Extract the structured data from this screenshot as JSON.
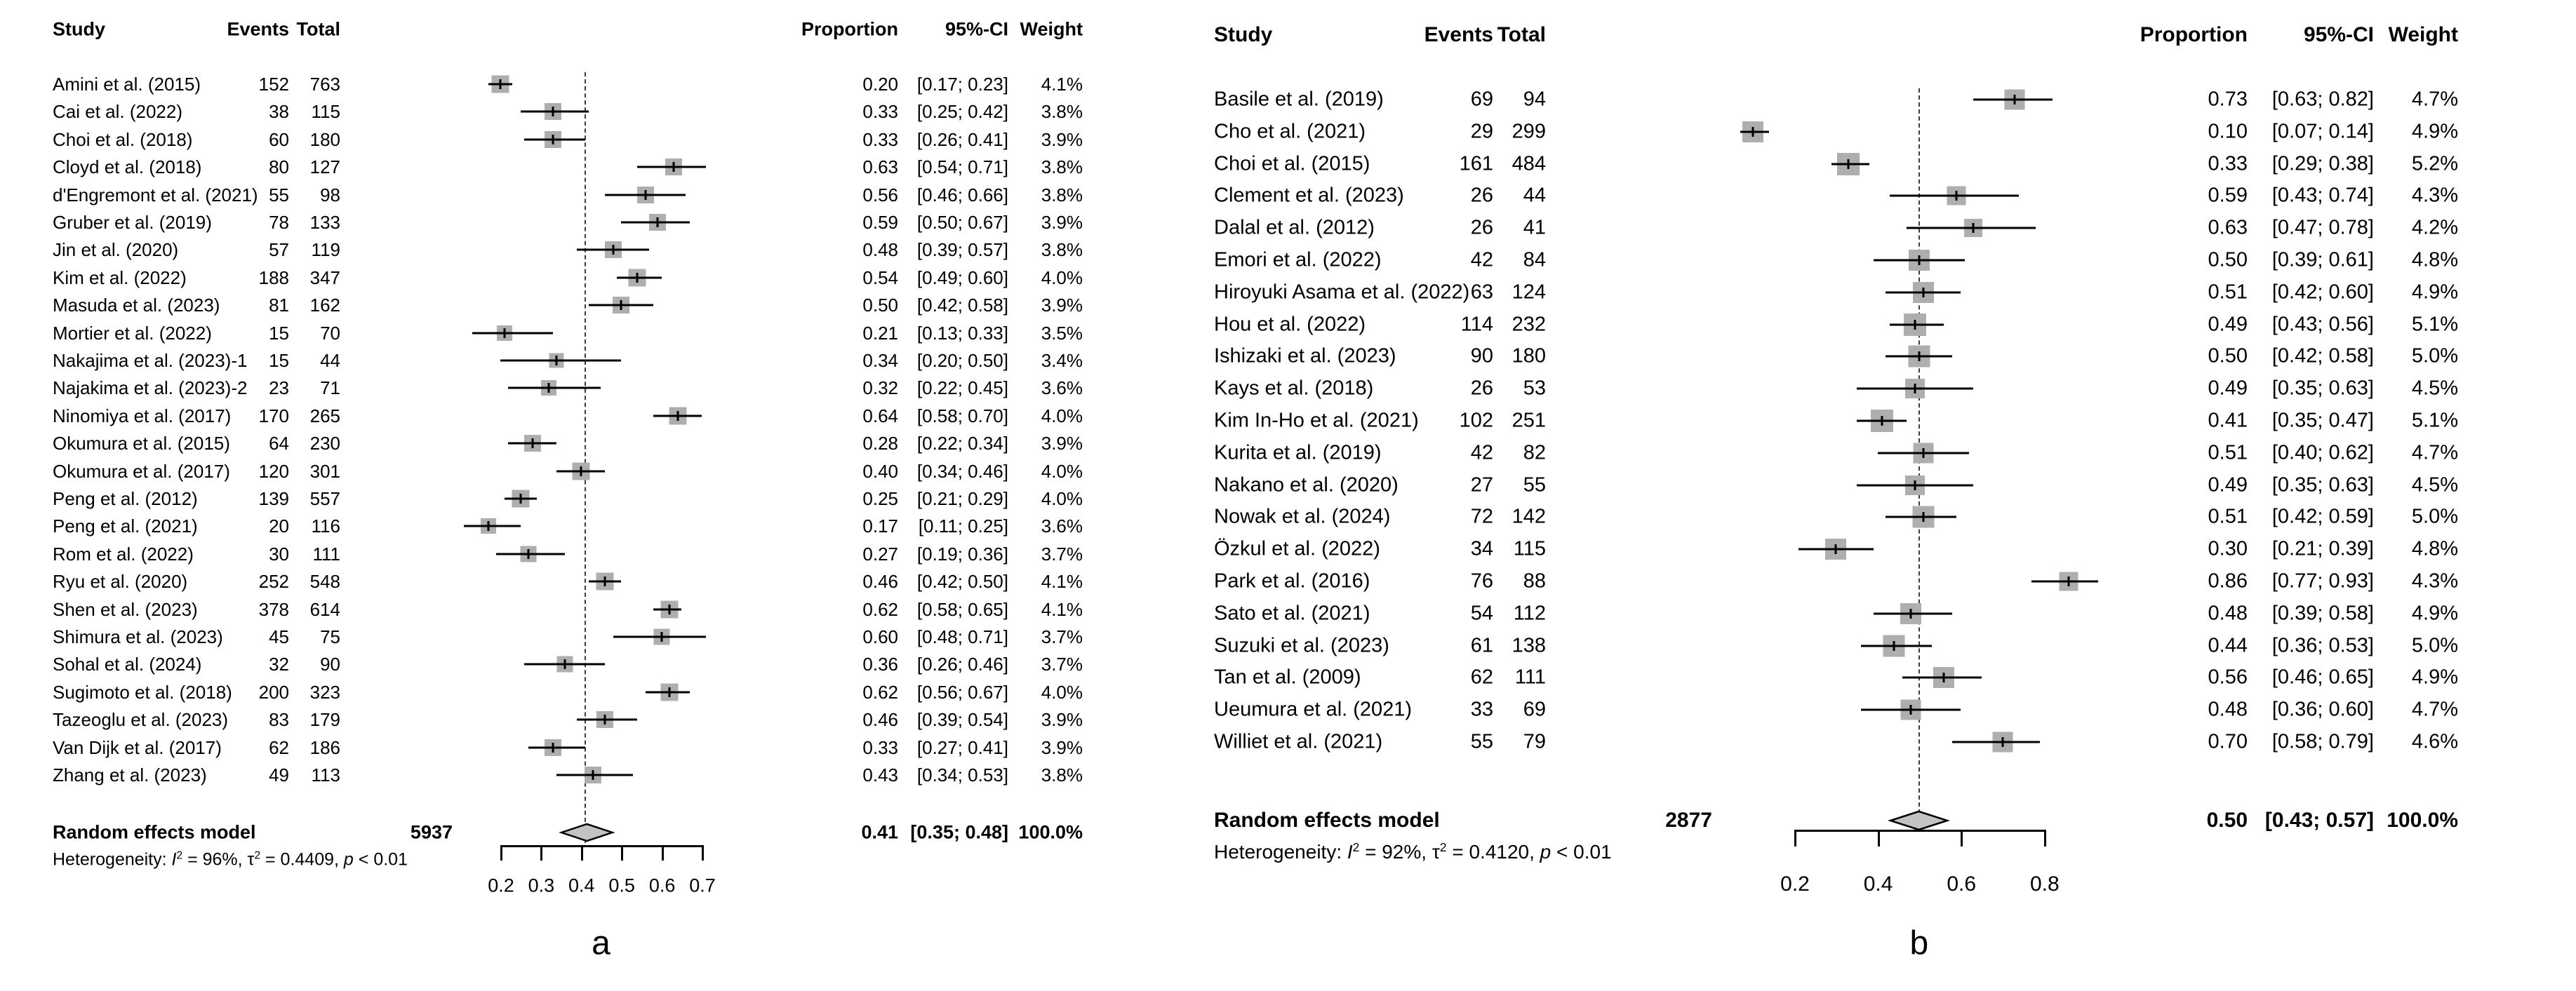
{
  "chart_data": [
    {
      "type": "forest",
      "panel_label": "a",
      "columns": {
        "study": "Study",
        "events": "Events",
        "total": "Total",
        "proportion": "Proportion",
        "ci": "95%-CI",
        "weight": "Weight"
      },
      "axis": {
        "min": 0.2,
        "max": 0.7,
        "ticks": [
          0.2,
          0.3,
          0.4,
          0.5,
          0.6,
          0.7
        ],
        "tick_labels": [
          "0.2",
          "0.3",
          "0.4",
          "0.5",
          "0.6",
          "0.7"
        ]
      },
      "ref_line": 0.41,
      "studies": [
        {
          "study": "Amini et al. (2015)",
          "events": "152",
          "total": "763",
          "proportion": "0.20",
          "ci": "[0.17; 0.23]",
          "weight": "4.1%",
          "prop": 0.2,
          "lo": 0.17,
          "hi": 0.23,
          "w": 4.1
        },
        {
          "study": "Cai et al. (2022)",
          "events": "38",
          "total": "115",
          "proportion": "0.33",
          "ci": "[0.25; 0.42]",
          "weight": "3.8%",
          "prop": 0.33,
          "lo": 0.25,
          "hi": 0.42,
          "w": 3.8
        },
        {
          "study": "Choi et al. (2018)",
          "events": "60",
          "total": "180",
          "proportion": "0.33",
          "ci": "[0.26; 0.41]",
          "weight": "3.9%",
          "prop": 0.33,
          "lo": 0.26,
          "hi": 0.41,
          "w": 3.9
        },
        {
          "study": "Cloyd et al. (2018)",
          "events": "80",
          "total": "127",
          "proportion": "0.63",
          "ci": "[0.54; 0.71]",
          "weight": "3.8%",
          "prop": 0.63,
          "lo": 0.54,
          "hi": 0.71,
          "w": 3.8
        },
        {
          "study": "d'Engremont et al. (2021)",
          "events": "55",
          "total": "98",
          "proportion": "0.56",
          "ci": "[0.46; 0.66]",
          "weight": "3.8%",
          "prop": 0.56,
          "lo": 0.46,
          "hi": 0.66,
          "w": 3.8
        },
        {
          "study": "Gruber et al. (2019)",
          "events": "78",
          "total": "133",
          "proportion": "0.59",
          "ci": "[0.50; 0.67]",
          "weight": "3.9%",
          "prop": 0.59,
          "lo": 0.5,
          "hi": 0.67,
          "w": 3.9
        },
        {
          "study": "Jin et al. (2020)",
          "events": "57",
          "total": "119",
          "proportion": "0.48",
          "ci": "[0.39; 0.57]",
          "weight": "3.8%",
          "prop": 0.48,
          "lo": 0.39,
          "hi": 0.57,
          "w": 3.8
        },
        {
          "study": "Kim et al. (2022)",
          "events": "188",
          "total": "347",
          "proportion": "0.54",
          "ci": "[0.49; 0.60]",
          "weight": "4.0%",
          "prop": 0.54,
          "lo": 0.49,
          "hi": 0.6,
          "w": 4.0
        },
        {
          "study": "Masuda et al. (2023)",
          "events": "81",
          "total": "162",
          "proportion": "0.50",
          "ci": "[0.42; 0.58]",
          "weight": "3.9%",
          "prop": 0.5,
          "lo": 0.42,
          "hi": 0.58,
          "w": 3.9
        },
        {
          "study": "Mortier et al. (2022)",
          "events": "15",
          "total": "70",
          "proportion": "0.21",
          "ci": "[0.13; 0.33]",
          "weight": "3.5%",
          "prop": 0.21,
          "lo": 0.13,
          "hi": 0.33,
          "w": 3.5
        },
        {
          "study": "Nakajima et al. (2023)-1",
          "events": "15",
          "total": "44",
          "proportion": "0.34",
          "ci": "[0.20; 0.50]",
          "weight": "3.4%",
          "prop": 0.34,
          "lo": 0.2,
          "hi": 0.5,
          "w": 3.4
        },
        {
          "study": "Najakima et al. (2023)-2",
          "events": "23",
          "total": "71",
          "proportion": "0.32",
          "ci": "[0.22; 0.45]",
          "weight": "3.6%",
          "prop": 0.32,
          "lo": 0.22,
          "hi": 0.45,
          "w": 3.6
        },
        {
          "study": "Ninomiya et al. (2017)",
          "events": "170",
          "total": "265",
          "proportion": "0.64",
          "ci": "[0.58; 0.70]",
          "weight": "4.0%",
          "prop": 0.64,
          "lo": 0.58,
          "hi": 0.7,
          "w": 4.0
        },
        {
          "study": "Okumura et al. (2015)",
          "events": "64",
          "total": "230",
          "proportion": "0.28",
          "ci": "[0.22; 0.34]",
          "weight": "3.9%",
          "prop": 0.28,
          "lo": 0.22,
          "hi": 0.34,
          "w": 3.9
        },
        {
          "study": "Okumura et al. (2017)",
          "events": "120",
          "total": "301",
          "proportion": "0.40",
          "ci": "[0.34; 0.46]",
          "weight": "4.0%",
          "prop": 0.4,
          "lo": 0.34,
          "hi": 0.46,
          "w": 4.0
        },
        {
          "study": "Peng et al. (2012)",
          "events": "139",
          "total": "557",
          "proportion": "0.25",
          "ci": "[0.21; 0.29]",
          "weight": "4.0%",
          "prop": 0.25,
          "lo": 0.21,
          "hi": 0.29,
          "w": 4.0
        },
        {
          "study": "Peng et al. (2021)",
          "events": "20",
          "total": "116",
          "proportion": "0.17",
          "ci": "[0.11; 0.25]",
          "weight": "3.6%",
          "prop": 0.17,
          "lo": 0.11,
          "hi": 0.25,
          "w": 3.6
        },
        {
          "study": "Rom et al. (2022)",
          "events": "30",
          "total": "111",
          "proportion": "0.27",
          "ci": "[0.19; 0.36]",
          "weight": "3.7%",
          "prop": 0.27,
          "lo": 0.19,
          "hi": 0.36,
          "w": 3.7
        },
        {
          "study": "Ryu et al. (2020)",
          "events": "252",
          "total": "548",
          "proportion": "0.46",
          "ci": "[0.42; 0.50]",
          "weight": "4.1%",
          "prop": 0.46,
          "lo": 0.42,
          "hi": 0.5,
          "w": 4.1
        },
        {
          "study": "Shen et al. (2023)",
          "events": "378",
          "total": "614",
          "proportion": "0.62",
          "ci": "[0.58; 0.65]",
          "weight": "4.1%",
          "prop": 0.62,
          "lo": 0.58,
          "hi": 0.65,
          "w": 4.1
        },
        {
          "study": "Shimura et al. (2023)",
          "events": "45",
          "total": "75",
          "proportion": "0.60",
          "ci": "[0.48; 0.71]",
          "weight": "3.7%",
          "prop": 0.6,
          "lo": 0.48,
          "hi": 0.71,
          "w": 3.7
        },
        {
          "study": "Sohal et al. (2024)",
          "events": "32",
          "total": "90",
          "proportion": "0.36",
          "ci": "[0.26; 0.46]",
          "weight": "3.7%",
          "prop": 0.36,
          "lo": 0.26,
          "hi": 0.46,
          "w": 3.7
        },
        {
          "study": "Sugimoto et al. (2018)",
          "events": "200",
          "total": "323",
          "proportion": "0.62",
          "ci": "[0.56; 0.67]",
          "weight": "4.0%",
          "prop": 0.62,
          "lo": 0.56,
          "hi": 0.67,
          "w": 4.0
        },
        {
          "study": "Tazeoglu et al. (2023)",
          "events": "83",
          "total": "179",
          "proportion": "0.46",
          "ci": "[0.39; 0.54]",
          "weight": "3.9%",
          "prop": 0.46,
          "lo": 0.39,
          "hi": 0.54,
          "w": 3.9
        },
        {
          "study": "Van Dijk et al. (2017)",
          "events": "62",
          "total": "186",
          "proportion": "0.33",
          "ci": "[0.27; 0.41]",
          "weight": "3.9%",
          "prop": 0.33,
          "lo": 0.27,
          "hi": 0.41,
          "w": 3.9
        },
        {
          "study": "Zhang et al. (2023)",
          "events": "49",
          "total": "113",
          "proportion": "0.43",
          "ci": "[0.34; 0.53]",
          "weight": "3.8%",
          "prop": 0.43,
          "lo": 0.34,
          "hi": 0.53,
          "w": 3.8
        }
      ],
      "summary": {
        "label": "Random effects model",
        "total": "5937",
        "proportion": "0.41",
        "ci": "[0.35; 0.48]",
        "weight": "100.0%",
        "est": 0.41,
        "lo": 0.35,
        "hi": 0.48
      },
      "heterogeneity": [
        {
          "t": "Heterogeneity: "
        },
        {
          "t": "I",
          "s": "it"
        },
        {
          "t": "2",
          "s": "sup"
        },
        {
          "t": " = 96%, "
        },
        {
          "t": "τ"
        },
        {
          "t": "2",
          "s": "sup"
        },
        {
          "t": " = 0.4409, "
        },
        {
          "t": "p",
          "s": "it"
        },
        {
          "t": " < 0.01"
        }
      ]
    },
    {
      "type": "forest",
      "panel_label": "b",
      "columns": {
        "study": "Study",
        "events": "Events",
        "total": "Total",
        "proportion": "Proportion",
        "ci": "95%-CI",
        "weight": "Weight"
      },
      "axis": {
        "min": 0.2,
        "max": 0.8,
        "ticks": [
          0.2,
          0.4,
          0.6,
          0.8
        ],
        "tick_labels": [
          "0.2",
          "0.4",
          "0.6",
          "0.8"
        ]
      },
      "ref_line": 0.5,
      "studies": [
        {
          "study": "Basile et al. (2019)",
          "events": "69",
          "total": "94",
          "proportion": "0.73",
          "ci": "[0.63; 0.82]",
          "weight": "4.7%",
          "prop": 0.73,
          "lo": 0.63,
          "hi": 0.82,
          "w": 4.7
        },
        {
          "study": "Cho et al. (2021)",
          "events": "29",
          "total": "299",
          "proportion": "0.10",
          "ci": "[0.07; 0.14]",
          "weight": "4.9%",
          "prop": 0.1,
          "lo": 0.07,
          "hi": 0.14,
          "w": 4.9
        },
        {
          "study": "Choi et al. (2015)",
          "events": "161",
          "total": "484",
          "proportion": "0.33",
          "ci": "[0.29; 0.38]",
          "weight": "5.2%",
          "prop": 0.33,
          "lo": 0.29,
          "hi": 0.38,
          "w": 5.2
        },
        {
          "study": "Clement et al. (2023)",
          "events": "26",
          "total": "44",
          "proportion": "0.59",
          "ci": "[0.43; 0.74]",
          "weight": "4.3%",
          "prop": 0.59,
          "lo": 0.43,
          "hi": 0.74,
          "w": 4.3
        },
        {
          "study": "Dalal et al. (2012)",
          "events": "26",
          "total": "41",
          "proportion": "0.63",
          "ci": "[0.47; 0.78]",
          "weight": "4.2%",
          "prop": 0.63,
          "lo": 0.47,
          "hi": 0.78,
          "w": 4.2
        },
        {
          "study": "Emori et al. (2022)",
          "events": "42",
          "total": "84",
          "proportion": "0.50",
          "ci": "[0.39; 0.61]",
          "weight": "4.8%",
          "prop": 0.5,
          "lo": 0.39,
          "hi": 0.61,
          "w": 4.8
        },
        {
          "study": "Hiroyuki Asama et al. (2022)",
          "events": "63",
          "total": "124",
          "proportion": "0.51",
          "ci": "[0.42; 0.60]",
          "weight": "4.9%",
          "prop": 0.51,
          "lo": 0.42,
          "hi": 0.6,
          "w": 4.9
        },
        {
          "study": "Hou et al. (2022)",
          "events": "114",
          "total": "232",
          "proportion": "0.49",
          "ci": "[0.43; 0.56]",
          "weight": "5.1%",
          "prop": 0.49,
          "lo": 0.43,
          "hi": 0.56,
          "w": 5.1
        },
        {
          "study": "Ishizaki et al. (2023)",
          "events": "90",
          "total": "180",
          "proportion": "0.50",
          "ci": "[0.42; 0.58]",
          "weight": "5.0%",
          "prop": 0.5,
          "lo": 0.42,
          "hi": 0.58,
          "w": 5.0
        },
        {
          "study": "Kays et al. (2018)",
          "events": "26",
          "total": "53",
          "proportion": "0.49",
          "ci": "[0.35; 0.63]",
          "weight": "4.5%",
          "prop": 0.49,
          "lo": 0.35,
          "hi": 0.63,
          "w": 4.5
        },
        {
          "study": "Kim In-Ho et al. (2021)",
          "events": "102",
          "total": "251",
          "proportion": "0.41",
          "ci": "[0.35; 0.47]",
          "weight": "5.1%",
          "prop": 0.41,
          "lo": 0.35,
          "hi": 0.47,
          "w": 5.1
        },
        {
          "study": "Kurita et al. (2019)",
          "events": "42",
          "total": "82",
          "proportion": "0.51",
          "ci": "[0.40; 0.62]",
          "weight": "4.7%",
          "prop": 0.51,
          "lo": 0.4,
          "hi": 0.62,
          "w": 4.7
        },
        {
          "study": "Nakano et al. (2020)",
          "events": "27",
          "total": "55",
          "proportion": "0.49",
          "ci": "[0.35; 0.63]",
          "weight": "4.5%",
          "prop": 0.49,
          "lo": 0.35,
          "hi": 0.63,
          "w": 4.5
        },
        {
          "study": "Nowak et al. (2024)",
          "events": "72",
          "total": "142",
          "proportion": "0.51",
          "ci": "[0.42; 0.59]",
          "weight": "5.0%",
          "prop": 0.51,
          "lo": 0.42,
          "hi": 0.59,
          "w": 5.0
        },
        {
          "study": "Özkul et al. (2022)",
          "events": "34",
          "total": "115",
          "proportion": "0.30",
          "ci": "[0.21; 0.39]",
          "weight": "4.8%",
          "prop": 0.3,
          "lo": 0.21,
          "hi": 0.39,
          "w": 4.8
        },
        {
          "study": "Park et al. (2016)",
          "events": "76",
          "total": "88",
          "proportion": "0.86",
          "ci": "[0.77; 0.93]",
          "weight": "4.3%",
          "prop": 0.86,
          "lo": 0.77,
          "hi": 0.93,
          "w": 4.3
        },
        {
          "study": "Sato et al. (2021)",
          "events": "54",
          "total": "112",
          "proportion": "0.48",
          "ci": "[0.39; 0.58]",
          "weight": "4.9%",
          "prop": 0.48,
          "lo": 0.39,
          "hi": 0.58,
          "w": 4.9
        },
        {
          "study": "Suzuki et al. (2023)",
          "events": "61",
          "total": "138",
          "proportion": "0.44",
          "ci": "[0.36; 0.53]",
          "weight": "5.0%",
          "prop": 0.44,
          "lo": 0.36,
          "hi": 0.53,
          "w": 5.0
        },
        {
          "study": "Tan et al. (2009)",
          "events": "62",
          "total": "111",
          "proportion": "0.56",
          "ci": "[0.46; 0.65]",
          "weight": "4.9%",
          "prop": 0.56,
          "lo": 0.46,
          "hi": 0.65,
          "w": 4.9
        },
        {
          "study": "Ueumura et al. (2021)",
          "events": "33",
          "total": "69",
          "proportion": "0.48",
          "ci": "[0.36; 0.60]",
          "weight": "4.7%",
          "prop": 0.48,
          "lo": 0.36,
          "hi": 0.6,
          "w": 4.7
        },
        {
          "study": "Williet et al. (2021)",
          "events": "55",
          "total": "79",
          "proportion": "0.70",
          "ci": "[0.58; 0.79]",
          "weight": "4.6%",
          "prop": 0.7,
          "lo": 0.58,
          "hi": 0.79,
          "w": 4.6
        }
      ],
      "summary": {
        "label": "Random effects model",
        "total": "2877",
        "proportion": "0.50",
        "ci": "[0.43; 0.57]",
        "weight": "100.0%",
        "est": 0.5,
        "lo": 0.43,
        "hi": 0.57
      },
      "heterogeneity": [
        {
          "t": "Heterogeneity: "
        },
        {
          "t": "I",
          "s": "it"
        },
        {
          "t": "2",
          "s": "sup"
        },
        {
          "t": " = 92%, "
        },
        {
          "t": "τ"
        },
        {
          "t": "2",
          "s": "sup"
        },
        {
          "t": " = 0.4120, "
        },
        {
          "t": "p",
          "s": "it"
        },
        {
          "t": " < 0.01"
        }
      ]
    }
  ]
}
